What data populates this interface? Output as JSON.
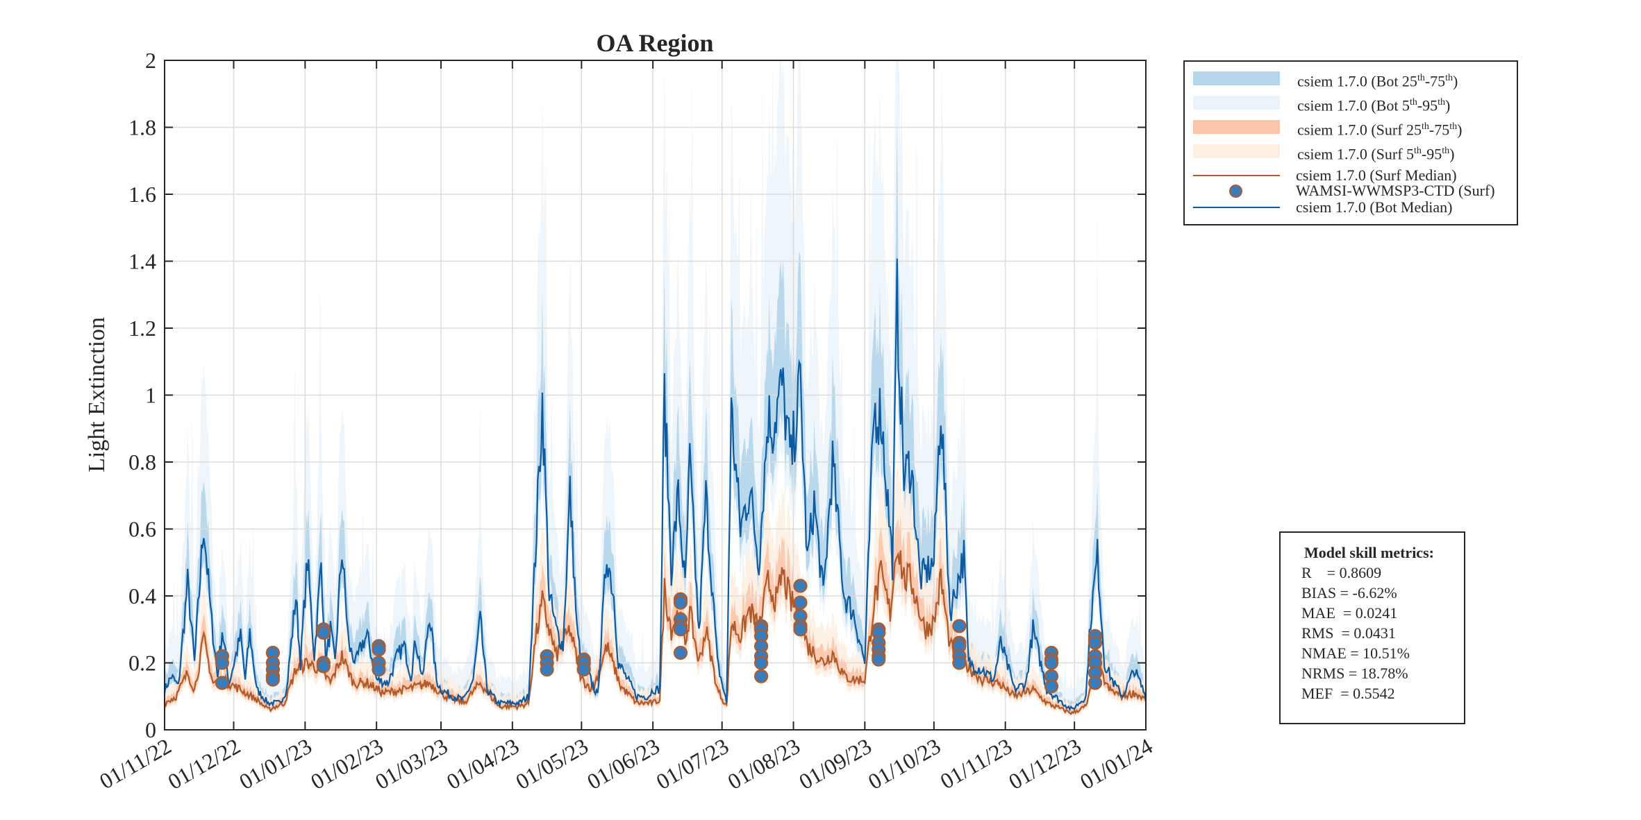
{
  "chart_data": {
    "type": "line",
    "title": "OA Region",
    "xlabel": "",
    "ylabel": "Light Extinction",
    "ylim": [
      0,
      2
    ],
    "xlim_days_from_start": [
      0,
      426
    ],
    "x_unit": "days since 01/11/22",
    "grid": true,
    "legend_placement": "outside-top-right",
    "y_ticks": [
      "0",
      "0.2",
      "0.4",
      "0.6",
      "0.8",
      "1",
      "1.2",
      "1.4",
      "1.6",
      "1.8",
      "2"
    ],
    "x_ticks": [
      {
        "day": 0,
        "label": "01/11/22"
      },
      {
        "day": 30,
        "label": "01/12/22"
      },
      {
        "day": 61,
        "label": "01/01/23"
      },
      {
        "day": 92,
        "label": "01/02/23"
      },
      {
        "day": 120,
        "label": "01/03/23"
      },
      {
        "day": 151,
        "label": "01/04/23"
      },
      {
        "day": 181,
        "label": "01/05/23"
      },
      {
        "day": 212,
        "label": "01/06/23"
      },
      {
        "day": 242,
        "label": "01/07/23"
      },
      {
        "day": 273,
        "label": "01/08/23"
      },
      {
        "day": 304,
        "label": "01/09/23"
      },
      {
        "day": 334,
        "label": "01/10/23"
      },
      {
        "day": 365,
        "label": "01/11/23"
      },
      {
        "day": 395,
        "label": "01/12/23"
      },
      {
        "day": 426,
        "label": "01/01/24"
      }
    ],
    "series": [
      {
        "name": "csiem 1.7.0 (Bot Median)",
        "color": "#0b5aa2",
        "points": [
          [
            0,
            0.12
          ],
          [
            3,
            0.16
          ],
          [
            6,
            0.13
          ],
          [
            10,
            0.44
          ],
          [
            13,
            0.2
          ],
          [
            17,
            0.62
          ],
          [
            20,
            0.35
          ],
          [
            23,
            0.16
          ],
          [
            25,
            0.3
          ],
          [
            28,
            0.14
          ],
          [
            33,
            0.28
          ],
          [
            35,
            0.15
          ],
          [
            37,
            0.29
          ],
          [
            40,
            0.12
          ],
          [
            45,
            0.08
          ],
          [
            50,
            0.08
          ],
          [
            53,
            0.12
          ],
          [
            57,
            0.4
          ],
          [
            59,
            0.2
          ],
          [
            62,
            0.51
          ],
          [
            65,
            0.22
          ],
          [
            68,
            0.5
          ],
          [
            70,
            0.2
          ],
          [
            72,
            0.3
          ],
          [
            74,
            0.2
          ],
          [
            77,
            0.54
          ],
          [
            80,
            0.25
          ],
          [
            83,
            0.2
          ],
          [
            86,
            0.26
          ],
          [
            88,
            0.28
          ],
          [
            92,
            0.15
          ],
          [
            97,
            0.14
          ],
          [
            101,
            0.22
          ],
          [
            104,
            0.25
          ],
          [
            107,
            0.16
          ],
          [
            109,
            0.27
          ],
          [
            112,
            0.15
          ],
          [
            115,
            0.35
          ],
          [
            118,
            0.15
          ],
          [
            120,
            0.12
          ],
          [
            125,
            0.1
          ],
          [
            130,
            0.09
          ],
          [
            134,
            0.15
          ],
          [
            137,
            0.33
          ],
          [
            140,
            0.12
          ],
          [
            145,
            0.08
          ],
          [
            150,
            0.08
          ],
          [
            154,
            0.08
          ],
          [
            158,
            0.1
          ],
          [
            161,
            0.53
          ],
          [
            164,
            0.98
          ],
          [
            167,
            0.4
          ],
          [
            170,
            0.3
          ],
          [
            173,
            0.25
          ],
          [
            176,
            0.71
          ],
          [
            179,
            0.3
          ],
          [
            181,
            0.2
          ],
          [
            185,
            0.15
          ],
          [
            188,
            0.1
          ],
          [
            192,
            0.53
          ],
          [
            195,
            0.4
          ],
          [
            197,
            0.2
          ],
          [
            201,
            0.15
          ],
          [
            205,
            0.1
          ],
          [
            210,
            0.1
          ],
          [
            212,
            0.12
          ],
          [
            215,
            0.12
          ],
          [
            217,
            1.0
          ],
          [
            220,
            0.48
          ],
          [
            223,
            0.7
          ],
          [
            226,
            0.42
          ],
          [
            228,
            0.8
          ],
          [
            232,
            0.28
          ],
          [
            235,
            0.7
          ],
          [
            240,
            0.2
          ],
          [
            244,
            0.08
          ],
          [
            246,
            0.95
          ],
          [
            250,
            0.6
          ],
          [
            254,
            0.72
          ],
          [
            258,
            0.5
          ],
          [
            262,
            0.94
          ],
          [
            264,
            0.9
          ],
          [
            268,
            1.03
          ],
          [
            272,
            0.8
          ],
          [
            276,
            1.04
          ],
          [
            279,
            0.5
          ],
          [
            282,
            0.68
          ],
          [
            286,
            0.4
          ],
          [
            290,
            0.8
          ],
          [
            295,
            0.4
          ],
          [
            299,
            0.35
          ],
          [
            304,
            0.2
          ],
          [
            308,
            0.95
          ],
          [
            311,
            0.95
          ],
          [
            316,
            0.5
          ],
          [
            318,
            1.28
          ],
          [
            321,
            0.75
          ],
          [
            324,
            0.8
          ],
          [
            328,
            0.45
          ],
          [
            334,
            0.5
          ],
          [
            337,
            0.98
          ],
          [
            341,
            0.35
          ],
          [
            347,
            0.52
          ],
          [
            349,
            0.2
          ],
          [
            355,
            0.18
          ],
          [
            360,
            0.15
          ],
          [
            363,
            0.26
          ],
          [
            369,
            0.12
          ],
          [
            374,
            0.14
          ],
          [
            377,
            0.3
          ],
          [
            383,
            0.12
          ],
          [
            390,
            0.08
          ],
          [
            394,
            0.06
          ],
          [
            400,
            0.1
          ],
          [
            402,
            0.33
          ],
          [
            405,
            0.52
          ],
          [
            408,
            0.2
          ],
          [
            412,
            0.14
          ],
          [
            416,
            0.1
          ],
          [
            421,
            0.18
          ],
          [
            426,
            0.1
          ]
        ]
      },
      {
        "name": "csiem 1.7.0 (Surf Median)",
        "color": "#b05a2a",
        "points": [
          [
            0,
            0.08
          ],
          [
            5,
            0.1
          ],
          [
            10,
            0.17
          ],
          [
            13,
            0.12
          ],
          [
            17,
            0.27
          ],
          [
            21,
            0.14
          ],
          [
            25,
            0.15
          ],
          [
            33,
            0.12
          ],
          [
            40,
            0.09
          ],
          [
            45,
            0.06
          ],
          [
            52,
            0.08
          ],
          [
            57,
            0.18
          ],
          [
            62,
            0.2
          ],
          [
            68,
            0.18
          ],
          [
            72,
            0.14
          ],
          [
            77,
            0.22
          ],
          [
            82,
            0.14
          ],
          [
            88,
            0.14
          ],
          [
            95,
            0.11
          ],
          [
            104,
            0.12
          ],
          [
            110,
            0.13
          ],
          [
            115,
            0.14
          ],
          [
            122,
            0.1
          ],
          [
            130,
            0.08
          ],
          [
            137,
            0.14
          ],
          [
            145,
            0.07
          ],
          [
            154,
            0.07
          ],
          [
            158,
            0.08
          ],
          [
            161,
            0.27
          ],
          [
            164,
            0.38
          ],
          [
            170,
            0.22
          ],
          [
            176,
            0.3
          ],
          [
            181,
            0.15
          ],
          [
            186,
            0.12
          ],
          [
            192,
            0.25
          ],
          [
            198,
            0.13
          ],
          [
            205,
            0.08
          ],
          [
            212,
            0.08
          ],
          [
            215,
            0.09
          ],
          [
            217,
            0.42
          ],
          [
            220,
            0.3
          ],
          [
            223,
            0.35
          ],
          [
            226,
            0.26
          ],
          [
            228,
            0.35
          ],
          [
            232,
            0.2
          ],
          [
            235,
            0.3
          ],
          [
            240,
            0.12
          ],
          [
            244,
            0.07
          ],
          [
            246,
            0.32
          ],
          [
            250,
            0.28
          ],
          [
            254,
            0.36
          ],
          [
            258,
            0.3
          ],
          [
            262,
            0.44
          ],
          [
            266,
            0.38
          ],
          [
            268,
            0.47
          ],
          [
            272,
            0.38
          ],
          [
            276,
            0.35
          ],
          [
            279,
            0.25
          ],
          [
            282,
            0.23
          ],
          [
            286,
            0.2
          ],
          [
            290,
            0.23
          ],
          [
            295,
            0.16
          ],
          [
            299,
            0.15
          ],
          [
            304,
            0.15
          ],
          [
            308,
            0.38
          ],
          [
            311,
            0.46
          ],
          [
            315,
            0.35
          ],
          [
            318,
            0.57
          ],
          [
            321,
            0.45
          ],
          [
            324,
            0.45
          ],
          [
            330,
            0.3
          ],
          [
            334,
            0.32
          ],
          [
            337,
            0.45
          ],
          [
            341,
            0.25
          ],
          [
            347,
            0.2
          ],
          [
            355,
            0.15
          ],
          [
            362,
            0.14
          ],
          [
            369,
            0.1
          ],
          [
            377,
            0.12
          ],
          [
            383,
            0.08
          ],
          [
            390,
            0.06
          ],
          [
            394,
            0.05
          ],
          [
            400,
            0.07
          ],
          [
            405,
            0.19
          ],
          [
            410,
            0.12
          ],
          [
            416,
            0.1
          ],
          [
            421,
            0.11
          ],
          [
            426,
            0.09
          ]
        ]
      }
    ],
    "observations": {
      "name": "WAMSI-WWMSP3-CTD (Surf)",
      "points": [
        [
          25,
          0.22
        ],
        [
          25,
          0.2
        ],
        [
          25,
          0.14
        ],
        [
          47,
          0.23
        ],
        [
          47,
          0.2
        ],
        [
          47,
          0.18
        ],
        [
          47,
          0.16
        ],
        [
          47,
          0.15
        ],
        [
          69,
          0.3
        ],
        [
          69,
          0.29
        ],
        [
          69,
          0.2
        ],
        [
          69,
          0.19
        ],
        [
          93,
          0.25
        ],
        [
          93,
          0.24
        ],
        [
          93,
          0.2
        ],
        [
          93,
          0.18
        ],
        [
          166,
          0.22
        ],
        [
          166,
          0.2
        ],
        [
          166,
          0.18
        ],
        [
          182,
          0.21
        ],
        [
          182,
          0.2
        ],
        [
          182,
          0.18
        ],
        [
          224,
          0.39
        ],
        [
          224,
          0.38
        ],
        [
          224,
          0.33
        ],
        [
          224,
          0.31
        ],
        [
          224,
          0.3
        ],
        [
          224,
          0.23
        ],
        [
          259,
          0.31
        ],
        [
          259,
          0.3
        ],
        [
          259,
          0.28
        ],
        [
          259,
          0.25
        ],
        [
          259,
          0.22
        ],
        [
          259,
          0.2
        ],
        [
          259,
          0.16
        ],
        [
          276,
          0.43
        ],
        [
          276,
          0.38
        ],
        [
          276,
          0.34
        ],
        [
          276,
          0.31
        ],
        [
          276,
          0.3
        ],
        [
          310,
          0.3
        ],
        [
          310,
          0.29
        ],
        [
          310,
          0.26
        ],
        [
          310,
          0.24
        ],
        [
          310,
          0.22
        ],
        [
          310,
          0.21
        ],
        [
          345,
          0.31
        ],
        [
          345,
          0.26
        ],
        [
          345,
          0.25
        ],
        [
          345,
          0.22
        ],
        [
          345,
          0.2
        ],
        [
          385,
          0.23
        ],
        [
          385,
          0.21
        ],
        [
          385,
          0.2
        ],
        [
          385,
          0.16
        ],
        [
          385,
          0.13
        ],
        [
          404,
          0.28
        ],
        [
          404,
          0.26
        ],
        [
          404,
          0.22
        ],
        [
          404,
          0.2
        ],
        [
          404,
          0.17
        ],
        [
          404,
          0.14
        ]
      ]
    },
    "bands": [
      {
        "name": "csiem 1.7.0 (Bot 25th-75th)",
        "color": "#b4d5ea",
        "of": "Bot"
      },
      {
        "name": "csiem 1.7.0 (Bot 5th-95th)",
        "color": "#ecf4fb",
        "of": "Bot"
      },
      {
        "name": "csiem 1.7.0 (Surf 25th-75th)",
        "color": "#fbc5aa",
        "of": "Surf"
      },
      {
        "name": "csiem 1.7.0 (Surf 5th-95th)",
        "color": "#fdf0e3",
        "of": "Surf"
      }
    ]
  },
  "legend": {
    "items": [
      {
        "prefix": "csiem 1.7.0 (Bot 25",
        "s1": "th",
        "mid": "-75",
        "s2": "th",
        "suffix": ")"
      },
      {
        "prefix": "csiem 1.7.0 (Bot 5",
        "s1": "th",
        "mid": "-95",
        "s2": "th",
        "suffix": ")"
      },
      {
        "prefix": "csiem 1.7.0 (Surf 25",
        "s1": "th",
        "mid": "-75",
        "s2": "th",
        "suffix": ")"
      },
      {
        "prefix": "csiem 1.7.0 (Surf 5",
        "s1": "th",
        "mid": "-95",
        "s2": "th",
        "suffix": ")"
      },
      {
        "prefix": "csiem 1.7.0 (Surf Median)"
      },
      {
        "prefix": "WAMSI-WWMSP3-CTD (Surf)"
      },
      {
        "prefix": "csiem 1.7.0 (Bot Median)"
      }
    ]
  },
  "metrics": {
    "title": "Model skill metrics:",
    "rows": [
      "R    = 0.8609",
      "BIAS = -6.62%",
      "MAE  = 0.0241",
      "RMS  = 0.0431",
      "NMAE = 10.51%",
      "NRMS = 18.78%",
      "MEF  = 0.5542"
    ]
  },
  "colors": {
    "obs_fill": "#3a7dbd",
    "obs_edge": "#b05a2a",
    "grid": "#dcdcdc",
    "axis": "#262626"
  }
}
